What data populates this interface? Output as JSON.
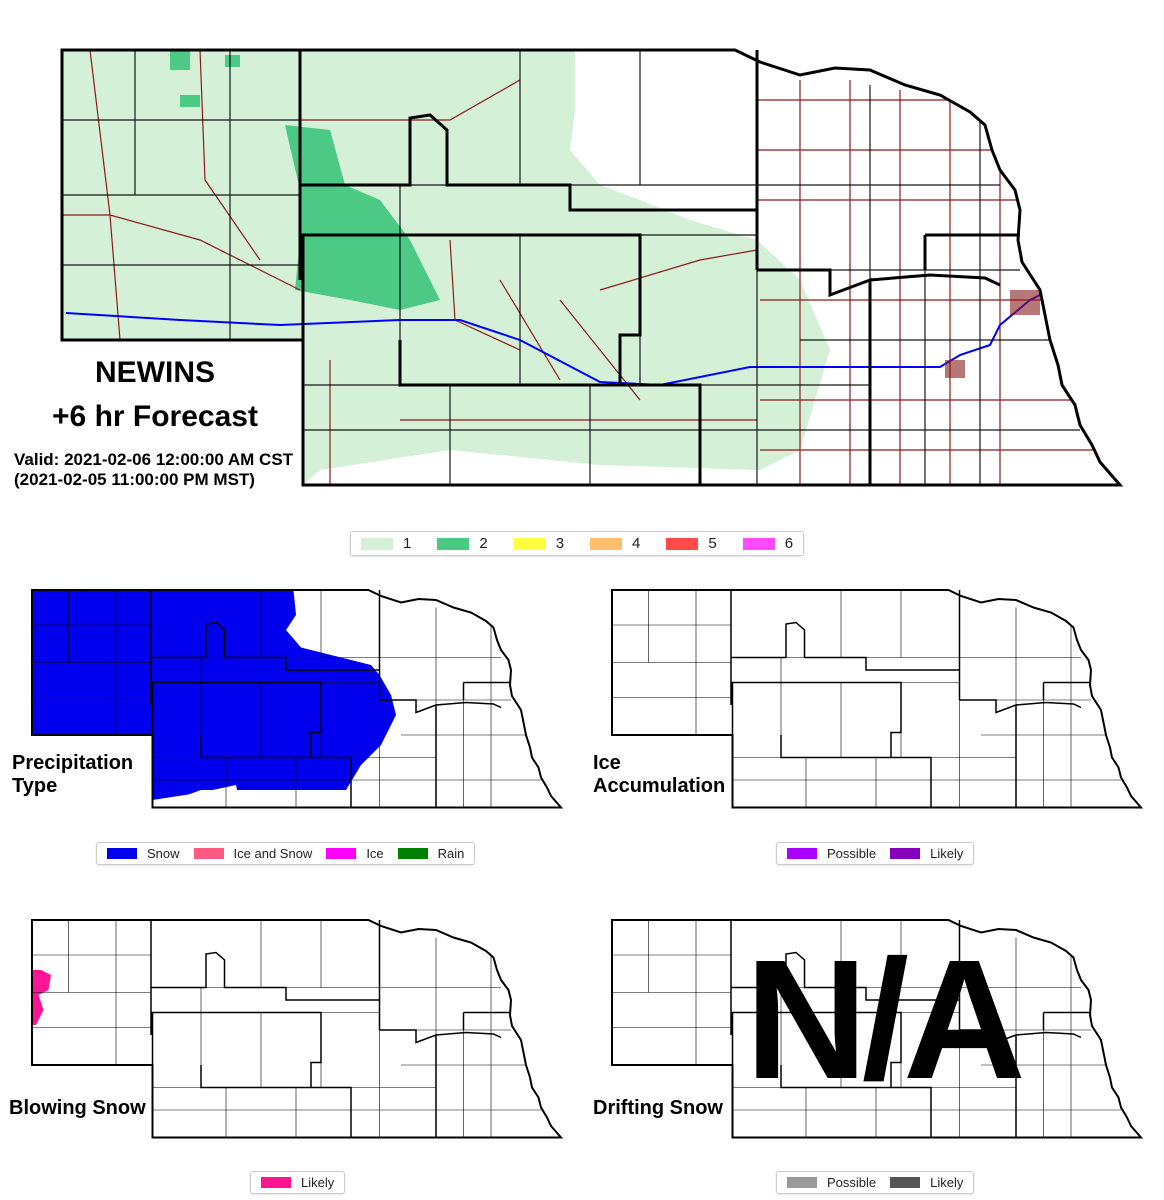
{
  "main": {
    "model": "NEWINS",
    "forecast": "+6 hr Forecast",
    "valid_cst": "Valid: 2021-02-06 12:00:00 AM CST",
    "valid_mst": "(2021-02-05 11:00:00 PM MST)",
    "legend": [
      {
        "label": "1",
        "color": "#d4f0d7"
      },
      {
        "label": "2",
        "color": "#4cc985"
      },
      {
        "label": "3",
        "color": "#ffff40"
      },
      {
        "label": "4",
        "color": "#ffbe6e"
      },
      {
        "label": "5",
        "color": "#ff4a4a"
      },
      {
        "label": "6",
        "color": "#ff4aff"
      }
    ]
  },
  "panels": {
    "precip": {
      "title1": "Precipitation",
      "title2": "Type",
      "legend": [
        {
          "label": "Snow",
          "color": "#0000ee"
        },
        {
          "label": "Ice and Snow",
          "color": "#ff5a80"
        },
        {
          "label": "Ice",
          "color": "#ff00ff"
        },
        {
          "label": "Rain",
          "color": "#008000"
        }
      ]
    },
    "ice": {
      "title1": "Ice",
      "title2": "Accumulation",
      "legend": [
        {
          "label": "Possible",
          "color": "#aa00ff"
        },
        {
          "label": "Likely",
          "color": "#8800bb"
        }
      ]
    },
    "blowing": {
      "title": "Blowing Snow",
      "legend": [
        {
          "label": "Likely",
          "color": "#ff1493"
        }
      ]
    },
    "drifting": {
      "title": "Drifting Snow",
      "overlay": "N/A",
      "legend": [
        {
          "label": "Possible",
          "color": "#999999"
        },
        {
          "label": "Likely",
          "color": "#555555"
        }
      ]
    }
  }
}
